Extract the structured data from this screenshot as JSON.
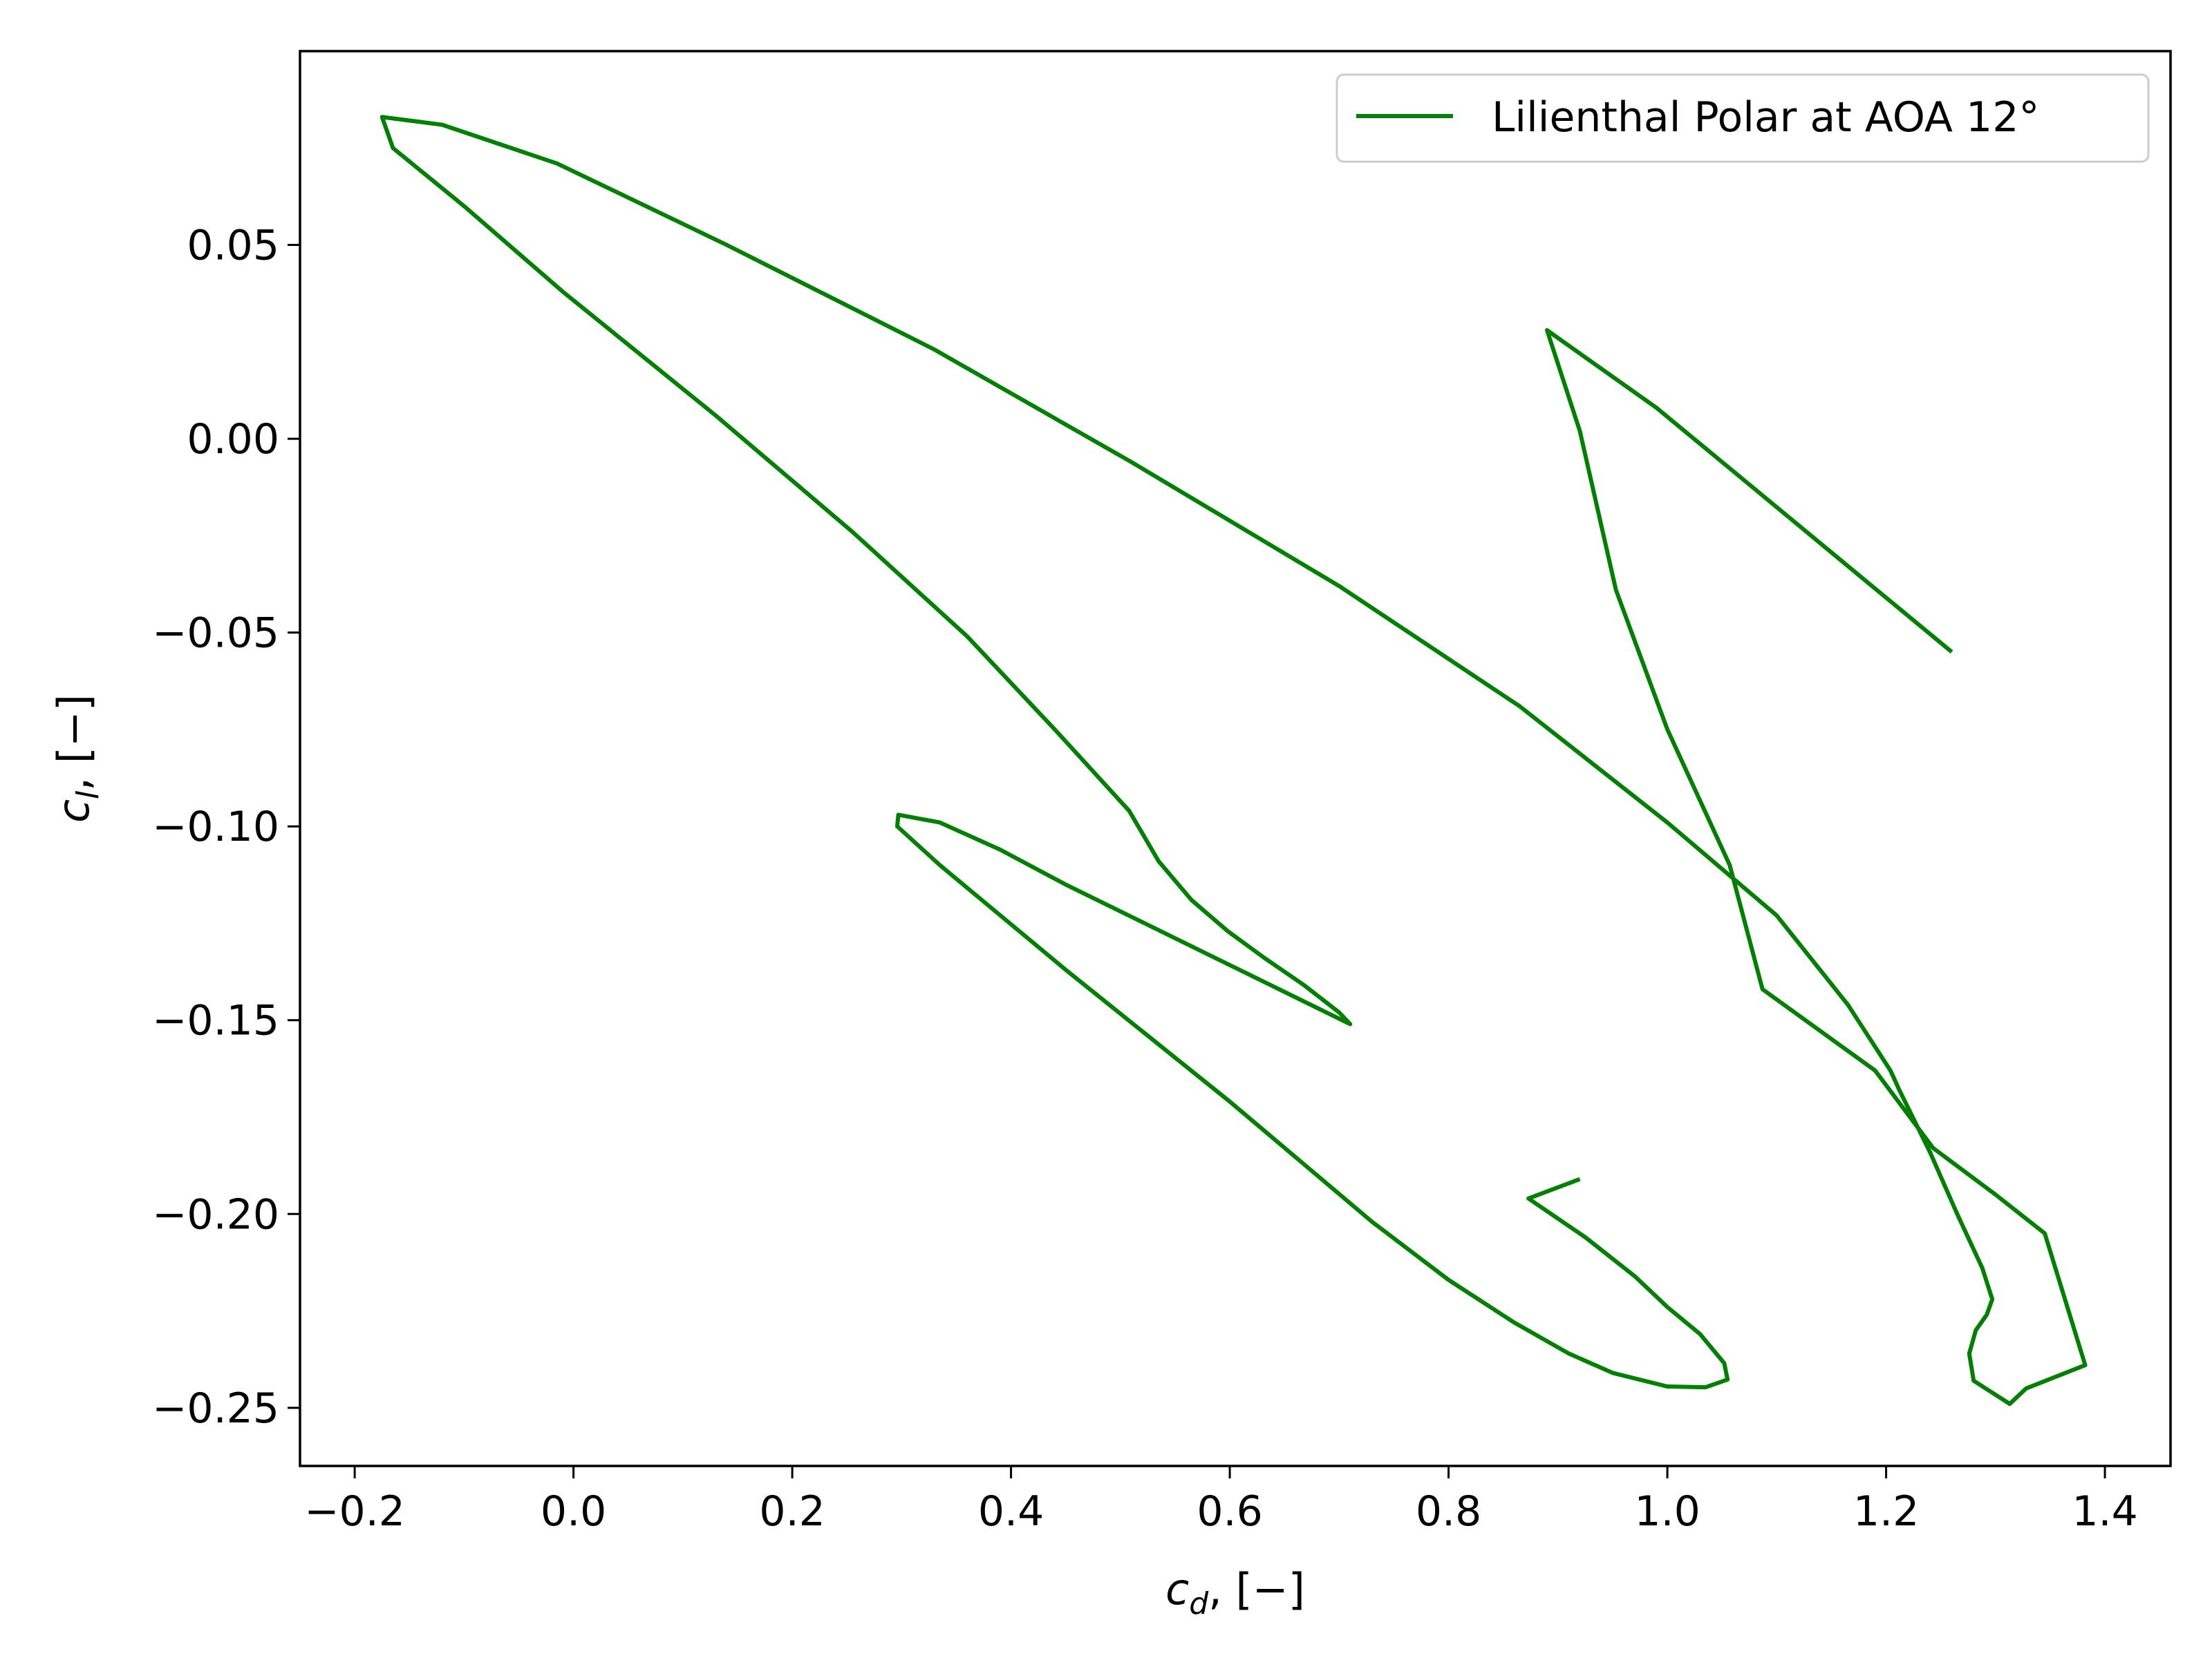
{
  "chart_data": {
    "type": "line",
    "title": "",
    "xlabel": {
      "main": "c",
      "sub": "d",
      "rest": ", [−]"
    },
    "ylabel": {
      "main": "c",
      "sub": "l",
      "rest": ", [−]"
    },
    "xlim": [
      -0.25,
      1.46
    ],
    "ylim": [
      -0.265,
      0.1
    ],
    "xticks": [
      -0.2,
      0.0,
      0.2,
      0.4,
      0.6,
      0.8,
      1.0,
      1.2,
      1.4
    ],
    "xtick_labels": [
      "−0.2",
      "0.0",
      "0.2",
      "0.4",
      "0.6",
      "0.8",
      "1.0",
      "1.2",
      "1.4"
    ],
    "yticks": [
      0.05,
      0.0,
      -0.05,
      -0.1,
      -0.15,
      -0.2,
      -0.25
    ],
    "ytick_labels": [
      "0.05",
      "0.00",
      "−0.05",
      "−0.10",
      "−0.15",
      "−0.20",
      "−0.25"
    ],
    "grid": false,
    "legend_position": "top-right",
    "series": [
      {
        "name": "Lilienthal Polar at AOA 12°",
        "color": "#008000",
        "points": [
          [
            1.26,
            -0.055
          ],
          [
            1.17,
            -0.034
          ],
          [
            1.08,
            -0.013
          ],
          [
            0.99,
            0.008
          ],
          [
            0.89,
            0.028
          ],
          [
            0.92,
            0.002
          ],
          [
            0.953,
            -0.039
          ],
          [
            1.0,
            -0.075
          ],
          [
            1.057,
            -0.11
          ],
          [
            1.087,
            -0.142
          ],
          [
            1.19,
            -0.163
          ],
          [
            1.243,
            -0.183
          ],
          [
            1.3,
            -0.195
          ],
          [
            1.345,
            -0.205
          ],
          [
            1.382,
            -0.239
          ],
          [
            1.328,
            -0.245
          ],
          [
            1.313,
            -0.249
          ],
          [
            1.28,
            -0.243
          ],
          [
            1.276,
            -0.236
          ],
          [
            1.282,
            -0.23
          ],
          [
            1.292,
            -0.226
          ],
          [
            1.297,
            -0.222
          ],
          [
            1.288,
            -0.214
          ],
          [
            1.265,
            -0.2
          ],
          [
            1.24,
            -0.184
          ],
          [
            1.212,
            -0.168
          ],
          [
            1.204,
            -0.163
          ],
          [
            1.165,
            -0.146
          ],
          [
            1.1,
            -0.123
          ],
          [
            1.0,
            -0.099
          ],
          [
            0.865,
            -0.069
          ],
          [
            0.7,
            -0.038
          ],
          [
            0.51,
            -0.006
          ],
          [
            0.33,
            0.023
          ],
          [
            0.14,
            0.05
          ],
          [
            -0.015,
            0.071
          ],
          [
            -0.12,
            0.081
          ],
          [
            -0.175,
            0.083
          ],
          [
            -0.165,
            0.075
          ],
          [
            -0.1,
            0.06
          ],
          [
            -0.01,
            0.038
          ],
          [
            0.13,
            0.006
          ],
          [
            0.255,
            -0.024
          ],
          [
            0.36,
            -0.051
          ],
          [
            0.44,
            -0.075
          ],
          [
            0.508,
            -0.096
          ],
          [
            0.535,
            -0.109
          ],
          [
            0.565,
            -0.119
          ],
          [
            0.598,
            -0.127
          ],
          [
            0.632,
            -0.134
          ],
          [
            0.668,
            -0.141
          ],
          [
            0.7,
            -0.148
          ],
          [
            0.71,
            -0.151
          ],
          [
            0.58,
            -0.133
          ],
          [
            0.45,
            -0.115
          ],
          [
            0.39,
            -0.106
          ],
          [
            0.335,
            -0.099
          ],
          [
            0.297,
            -0.097
          ],
          [
            0.296,
            -0.1
          ],
          [
            0.335,
            -0.11
          ],
          [
            0.45,
            -0.137
          ],
          [
            0.6,
            -0.171
          ],
          [
            0.73,
            -0.202
          ],
          [
            0.8,
            -0.217
          ],
          [
            0.86,
            -0.228
          ],
          [
            0.91,
            -0.236
          ],
          [
            0.95,
            -0.241
          ],
          [
            1.0,
            -0.2445
          ],
          [
            1.035,
            -0.2447
          ],
          [
            1.055,
            -0.2427
          ],
          [
            1.052,
            -0.2385
          ],
          [
            1.03,
            -0.231
          ],
          [
            1.0,
            -0.224
          ],
          [
            0.97,
            -0.216
          ],
          [
            0.925,
            -0.206
          ],
          [
            0.873,
            -0.196
          ],
          [
            0.92,
            -0.191
          ]
        ]
      }
    ]
  }
}
